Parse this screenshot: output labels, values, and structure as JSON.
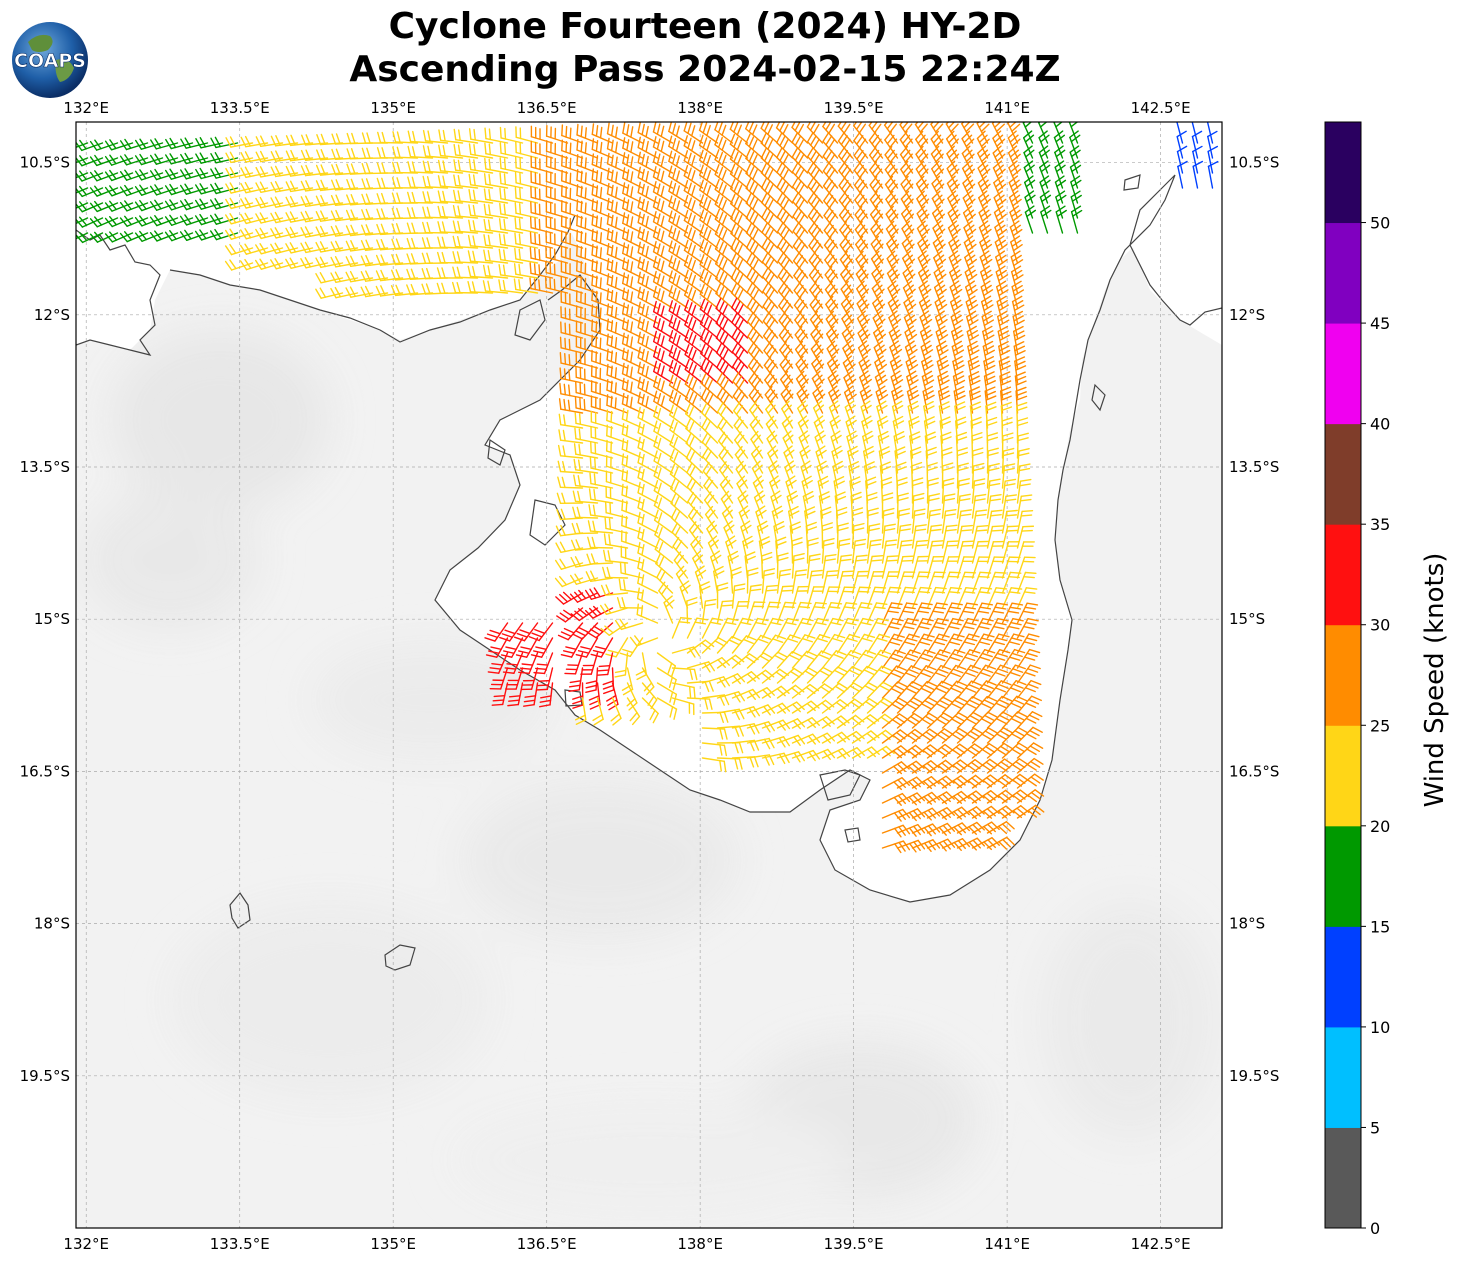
{
  "title": {
    "line1": "Cyclone Fourteen (2024) HY-2D",
    "line2": "Ascending Pass 2024-02-15 22:24Z"
  },
  "logo": {
    "text": "COAPS"
  },
  "axes": {
    "lon_ticks": [
      "132°E",
      "133.5°E",
      "135°E",
      "136.5°E",
      "138°E",
      "139.5°E",
      "141°E",
      "142.5°E"
    ],
    "lat_ticks": [
      "10.5°S",
      "12°S",
      "13.5°S",
      "15°S",
      "16.5°S",
      "18°S",
      "19.5°S"
    ]
  },
  "colorbar": {
    "label": "Wind Speed (knots)",
    "ticks": [
      "0",
      "5",
      "10",
      "15",
      "20",
      "25",
      "30",
      "35",
      "40",
      "45",
      "50"
    ],
    "colors": [
      "#595959",
      "#00bfff",
      "#0040ff",
      "#009900",
      "#ffd617",
      "#ff8c00",
      "#ff1010",
      "#7f3d2a",
      "#f000f0",
      "#8000c0",
      "#2a0060"
    ]
  },
  "chart_data": {
    "type": "map-wind-barbs",
    "lon_range": [
      131.9,
      143.1
    ],
    "lat_range": [
      -21.0,
      -10.1
    ],
    "wind_speed_bins_knots": [
      [
        0,
        5
      ],
      [
        5,
        10
      ],
      [
        10,
        15
      ],
      [
        15,
        20
      ],
      [
        20,
        25
      ],
      [
        25,
        30
      ],
      [
        30,
        35
      ],
      [
        35,
        40
      ],
      [
        40,
        45
      ],
      [
        45,
        50
      ],
      [
        50,
        55
      ]
    ],
    "storm_center_approx": {
      "lon": 137.6,
      "lat": -15.2
    },
    "regions": [
      {
        "area": "northwest",
        "lon_range": [
          132.0,
          133.8
        ],
        "lat_range": [
          -11.3,
          -10.2
        ],
        "speed_bin": "15-20"
      },
      {
        "area": "north-central",
        "lon_range": [
          133.5,
          136.5
        ],
        "lat_range": [
          -11.8,
          -10.2
        ],
        "speed_bin": "20-25"
      },
      {
        "area": "northeast",
        "lon_range": [
          141.0,
          141.8
        ],
        "lat_range": [
          -11.2,
          -10.2
        ],
        "speed_bin": "15-20"
      },
      {
        "area": "far northeast",
        "lon_range": [
          142.7,
          143.1
        ],
        "lat_range": [
          -10.8,
          -10.2
        ],
        "speed_bin": "10-15"
      },
      {
        "area": "gulf north",
        "lon_range": [
          136.5,
          141.2
        ],
        "lat_range": [
          -13.5,
          -10.2
        ],
        "speed_bin": "25-30"
      },
      {
        "area": "gulf core band",
        "lon_range": [
          137.7,
          138.5
        ],
        "lat_range": [
          -12.8,
          -12.0
        ],
        "speed_bin": "30-35"
      },
      {
        "area": "gulf central",
        "lon_range": [
          136.7,
          141.2
        ],
        "lat_range": [
          -16.5,
          -13.0
        ],
        "speed_bin": "20-25"
      },
      {
        "area": "southwest near center",
        "lon_range": [
          136.1,
          137.2
        ],
        "lat_range": [
          -15.7,
          -14.6
        ],
        "speed_bin": "25-35"
      },
      {
        "area": "gulf southeast",
        "lon_range": [
          139.7,
          141.4
        ],
        "lat_range": [
          -17.4,
          -15.0
        ],
        "speed_bin": "25-30"
      }
    ]
  }
}
